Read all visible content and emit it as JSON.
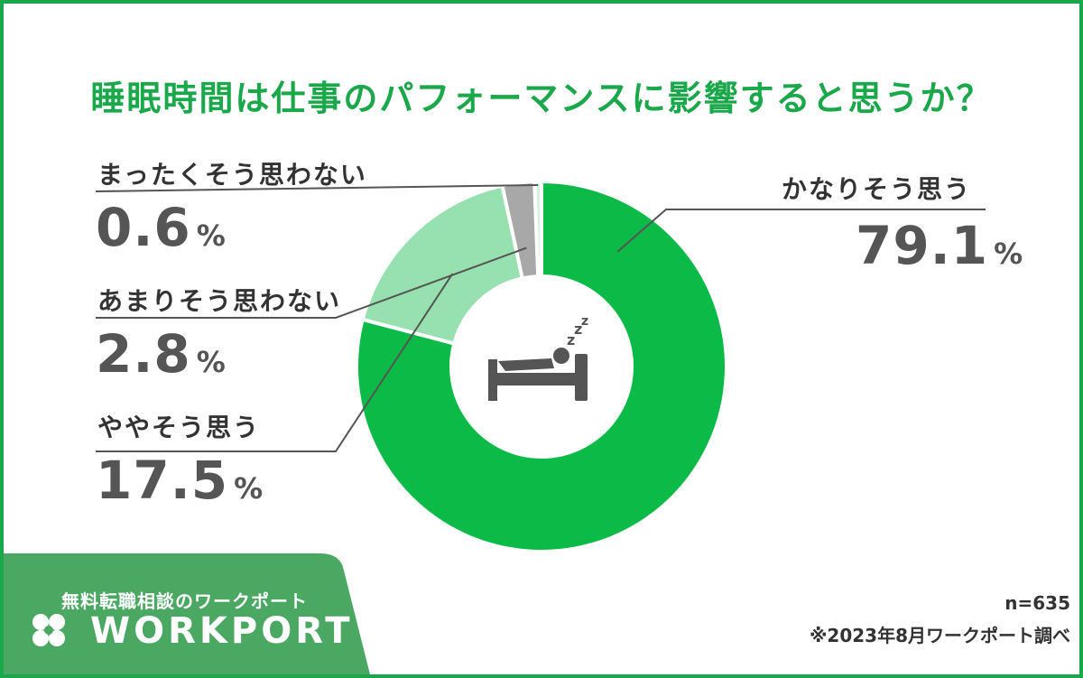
{
  "title": "睡眠時間は仕事のパフォーマンスに影響すると思うか？",
  "unit": "%",
  "colors": {
    "brand": "#1aa84a",
    "slice_main": "#0cbb47",
    "slice_light": "#97e0b0",
    "slice_gray": "#a8a8a8",
    "slice_pale": "#d8f2e1",
    "leader": "#555555",
    "icon": "#555555"
  },
  "center_icon": "bed-sleeping-icon",
  "footer": {
    "n_label": "n=635",
    "source": "※2023年8月ワークポート調べ"
  },
  "brand": {
    "tagline": "無料転職相談のワークポート",
    "name": "WORKPORT",
    "logo_icon": "clover-icon"
  },
  "chart_data": {
    "type": "pie",
    "title": "睡眠時間は仕事のパフォーマンスに影響すると思うか？",
    "categories": [
      "かなりそう思う",
      "ややそう思う",
      "あまりそう思わない",
      "まったくそう思わない"
    ],
    "values": [
      79.1,
      17.5,
      2.8,
      0.6
    ],
    "value_labels": [
      "79.1",
      "17.5",
      "2.8",
      "0.6"
    ],
    "unit": "%",
    "donut": true,
    "n": 635
  }
}
